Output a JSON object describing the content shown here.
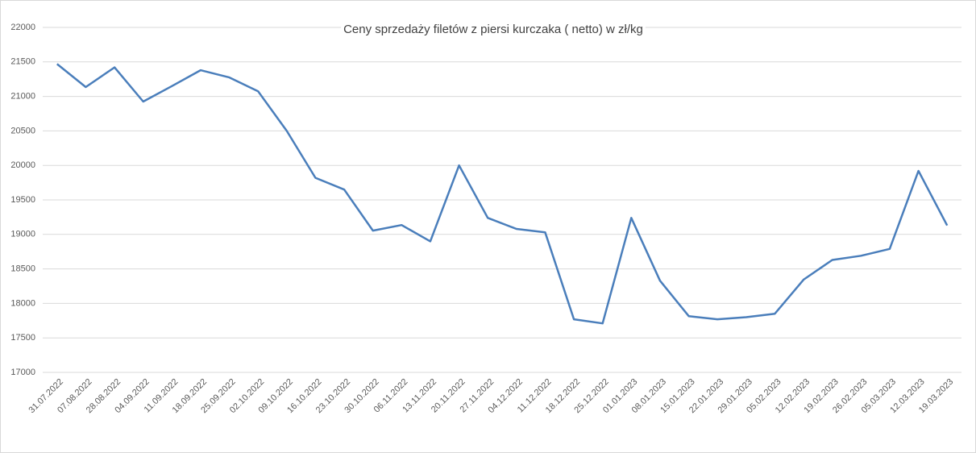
{
  "chart_data": {
    "type": "line",
    "title": "Ceny sprzedaży filetów z piersi kurczaka ( netto) w zł/kg",
    "categories": [
      "31.07.2022",
      "07.08.2022",
      "28.08.2022",
      "04.09.2022",
      "11.09.2022",
      "18.09.2022",
      "25.09.2022",
      "02.10.2022",
      "09.10.2022",
      "16.10.2022",
      "23.10.2022",
      "30.10.2022",
      "06.11.2022",
      "13.11.2022",
      "20.11.2022",
      "27.11.2022",
      "04.12.2022",
      "11.12.2022",
      "18.12.2022",
      "25.12.2022",
      "01.01.2023",
      "08.01.2023",
      "15.01.2023",
      "22.01.2023",
      "29.01.2023",
      "05.02.2023",
      "12.02.2023",
      "19.02.2023",
      "26.02.2023",
      "05.03.2023",
      "12.03.2023",
      "19.03.2023"
    ],
    "values": [
      21470,
      21135,
      21420,
      20925,
      21150,
      21380,
      21275,
      21075,
      20500,
      19820,
      19650,
      19055,
      19135,
      18900,
      20000,
      19240,
      19080,
      19030,
      17770,
      17710,
      19240,
      18330,
      17815,
      17770,
      17800,
      17850,
      18345,
      18630,
      18690,
      18790,
      19920,
      19130
    ],
    "color": "#4a7ebb",
    "ylim": [
      17000,
      22000
    ],
    "yticks": [
      17000,
      17500,
      18000,
      18500,
      19000,
      19500,
      20000,
      20500,
      21000,
      21500,
      22000
    ],
    "grid": true
  }
}
